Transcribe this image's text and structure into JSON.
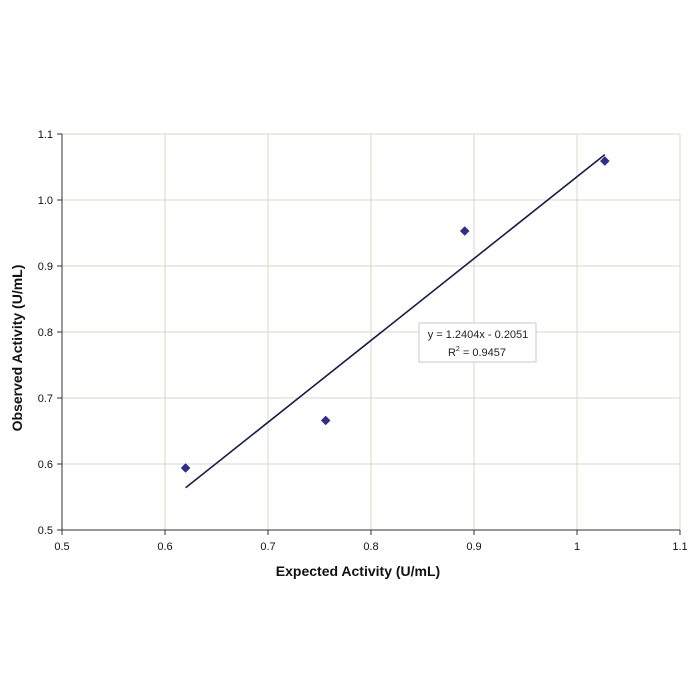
{
  "chart_data": {
    "type": "scatter",
    "title": "",
    "xlabel": "Expected Activity (U/mL)",
    "ylabel": "Observed Activity (U/mL)",
    "xlim": [
      0.5,
      1.1
    ],
    "ylim": [
      0.5,
      1.1
    ],
    "x_ticks": [
      0.5,
      0.6,
      0.7,
      0.8,
      0.9,
      1.0,
      1.1
    ],
    "x_tick_labels": [
      "0.5",
      "0.6",
      "0.7",
      "0.8",
      "0.9",
      "1",
      "1.1"
    ],
    "y_ticks": [
      0.5,
      0.6,
      0.7,
      0.8,
      0.9,
      1.0,
      1.1
    ],
    "y_tick_labels": [
      "0.5",
      "0.6",
      "0.7",
      "0.8",
      "0.9",
      "1.0",
      "1.1"
    ],
    "grid": true,
    "legend": "none",
    "series": [
      {
        "marker": "diamond",
        "color": "#2e2e8f",
        "x": [
          0.62,
          0.756,
          0.891,
          1.027
        ],
        "y": [
          0.594,
          0.666,
          0.953,
          1.059
        ]
      }
    ],
    "trendline": {
      "slope": 1.2404,
      "intercept": -0.2051,
      "x_range": [
        0.62,
        1.027
      ],
      "color": "#1a1a4a",
      "equation": "y = 1.2404x - 0.2051",
      "r_squared_label": "R",
      "r_squared_exp": "2",
      "r_squared_value": " = 0.9457"
    }
  }
}
